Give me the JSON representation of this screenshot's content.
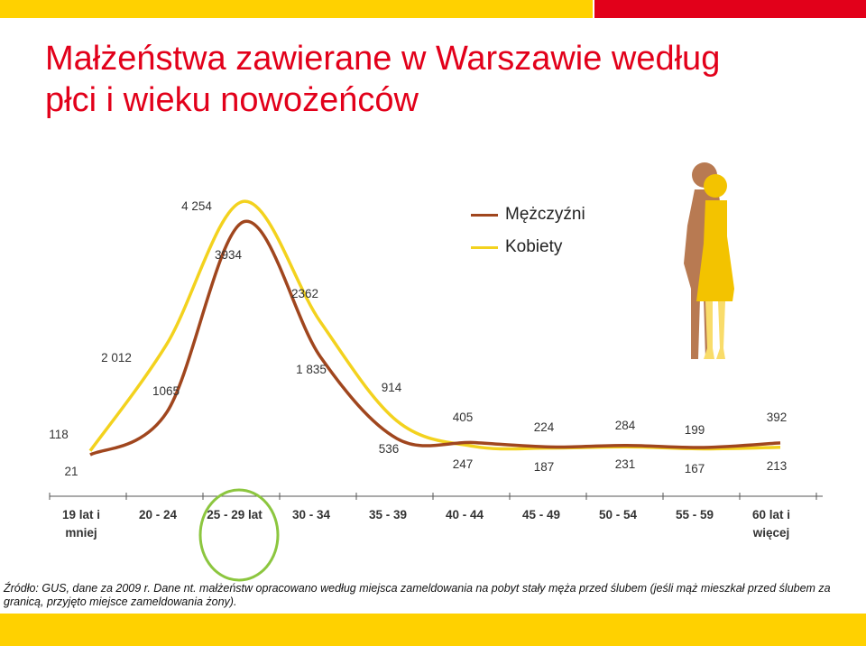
{
  "title_line1": "Małżeństwa zawierane w Warszawie według",
  "title_line2": "płci i wieku nowożeńców",
  "source_line1": "Źródło: GUS, dane za 2009 r. Dane nt. małżeństw opracowano według miejsca zameldowania na pobyt stały męża przed ślubem (jeśli mąż mieszkał przed ślubem za",
  "source_line2": "granicą, przyjęto miejsce zameldowania żony).",
  "colors": {
    "men": "#A0461E",
    "women": "#F3D21E",
    "highlight": "#8CC63F",
    "title": "#E2001A",
    "bar_yellow": "#FFD100",
    "bar_red": "#E2001A"
  },
  "chart_data": {
    "type": "line",
    "categories": [
      "19 lat i mniej",
      "20 - 24",
      "25 - 29 lat",
      "30 - 34",
      "35 - 39",
      "40 - 44",
      "45 - 49",
      "50 - 54",
      "55 - 59",
      "60 lat i więcej"
    ],
    "series": [
      {
        "name": "Mężczyźni",
        "values": [
          21,
          1065,
          3934,
          1835,
          536,
          405,
          224,
          284,
          199,
          392
        ]
      },
      {
        "name": "Kobiety",
        "values": [
          118,
          2012,
          4254,
          2362,
          914,
          247,
          187,
          231,
          167,
          213
        ]
      }
    ],
    "value_labels": {
      "men": [
        "21",
        "1065",
        "3934",
        "1 835",
        "536",
        "405",
        "224",
        "284",
        "199",
        "392"
      ],
      "women": [
        "118",
        "2 012",
        "4 254",
        "2362",
        "914",
        "247",
        "187",
        "231",
        "167",
        "213"
      ]
    },
    "legend": {
      "position": "top-right",
      "entries": [
        "Mężczyźni",
        "Kobiety"
      ]
    },
    "highlighted_category": "25 - 29 lat"
  }
}
